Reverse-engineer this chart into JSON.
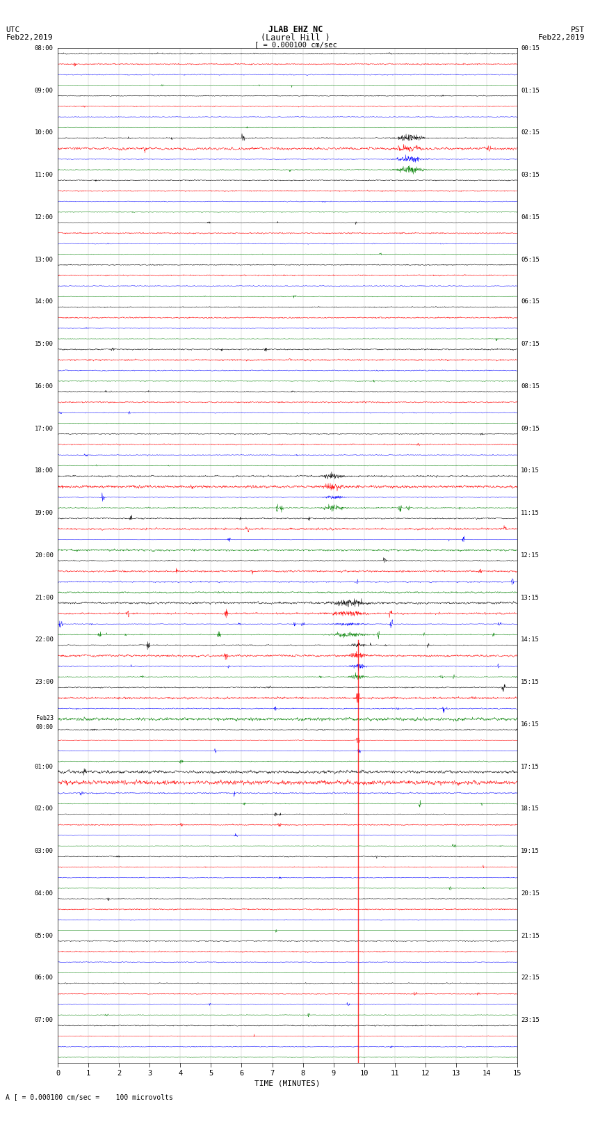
{
  "title_line1": "JLAB EHZ NC",
  "title_line2": "(Laurel Hill )",
  "title_line3": "[ = 0.000100 cm/sec",
  "utc_label": "UTC",
  "utc_date": "Feb22,2019",
  "pst_label": "PST",
  "pst_date": "Feb22,2019",
  "xlabel": "TIME (MINUTES)",
  "footer": "A [ = 0.000100 cm/sec =    100 microvolts",
  "xmin": 0,
  "xmax": 15,
  "bg_color": "#ffffff",
  "trace_colors": [
    "black",
    "red",
    "blue",
    "green"
  ],
  "left_times_utc": [
    "08:00",
    "09:00",
    "10:00",
    "11:00",
    "12:00",
    "13:00",
    "14:00",
    "15:00",
    "16:00",
    "17:00",
    "18:00",
    "19:00",
    "20:00",
    "21:00",
    "22:00",
    "23:00",
    "Feb23\n00:00",
    "01:00",
    "02:00",
    "03:00",
    "04:00",
    "05:00",
    "06:00",
    "07:00"
  ],
  "right_times_pst": [
    "00:15",
    "01:15",
    "02:15",
    "03:15",
    "04:15",
    "05:15",
    "06:15",
    "07:15",
    "08:15",
    "09:15",
    "10:15",
    "11:15",
    "12:15",
    "13:15",
    "14:15",
    "15:15",
    "16:15",
    "17:15",
    "18:15",
    "19:15",
    "20:15",
    "21:15",
    "22:15",
    "23:15"
  ],
  "n_hour_rows": 24,
  "traces_per_hour": 4
}
